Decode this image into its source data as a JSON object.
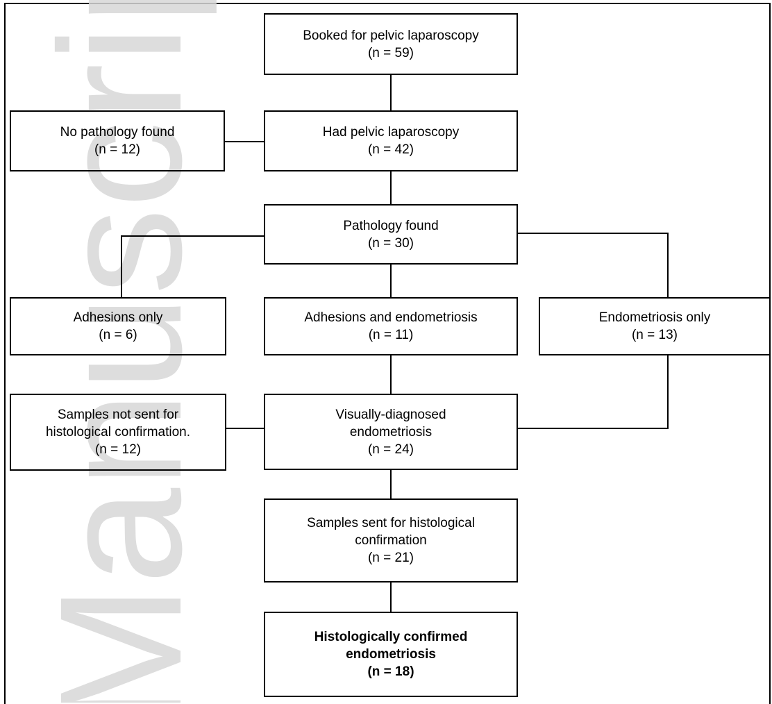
{
  "watermark_text": "Manuscript",
  "boxes": {
    "booked": {
      "label": "Booked for pelvic laparoscopy",
      "count": "(n = 59)"
    },
    "had": {
      "label": "Had pelvic laparoscopy",
      "count": "(n = 42)"
    },
    "no_pathology": {
      "label": "No pathology found",
      "count": "(n = 12)"
    },
    "pathology": {
      "label": "Pathology found",
      "count": "(n = 30)"
    },
    "adhesions": {
      "label": "Adhesions only",
      "count": "(n = 6)"
    },
    "adh_endo": {
      "label": "Adhesions and endometriosis",
      "count": "(n = 11)"
    },
    "endo_only": {
      "label": "Endometriosis only",
      "count": "(n = 13)"
    },
    "not_sent": {
      "line1": "Samples not sent for",
      "line2": "histological confirmation.",
      "count": "(n = 12)"
    },
    "visual": {
      "line1": "Visually-diagnosed",
      "line2": "endometriosis",
      "count": "(n = 24)"
    },
    "sent": {
      "line1": "Samples sent for histological",
      "line2": "confirmation",
      "count": "(n = 21)"
    },
    "confirmed": {
      "line1": "Histologically confirmed",
      "line2": "endometriosis",
      "count": "(n = 18)"
    }
  },
  "colors": {
    "line": "#000000",
    "watermark": "#d8d8d8"
  }
}
